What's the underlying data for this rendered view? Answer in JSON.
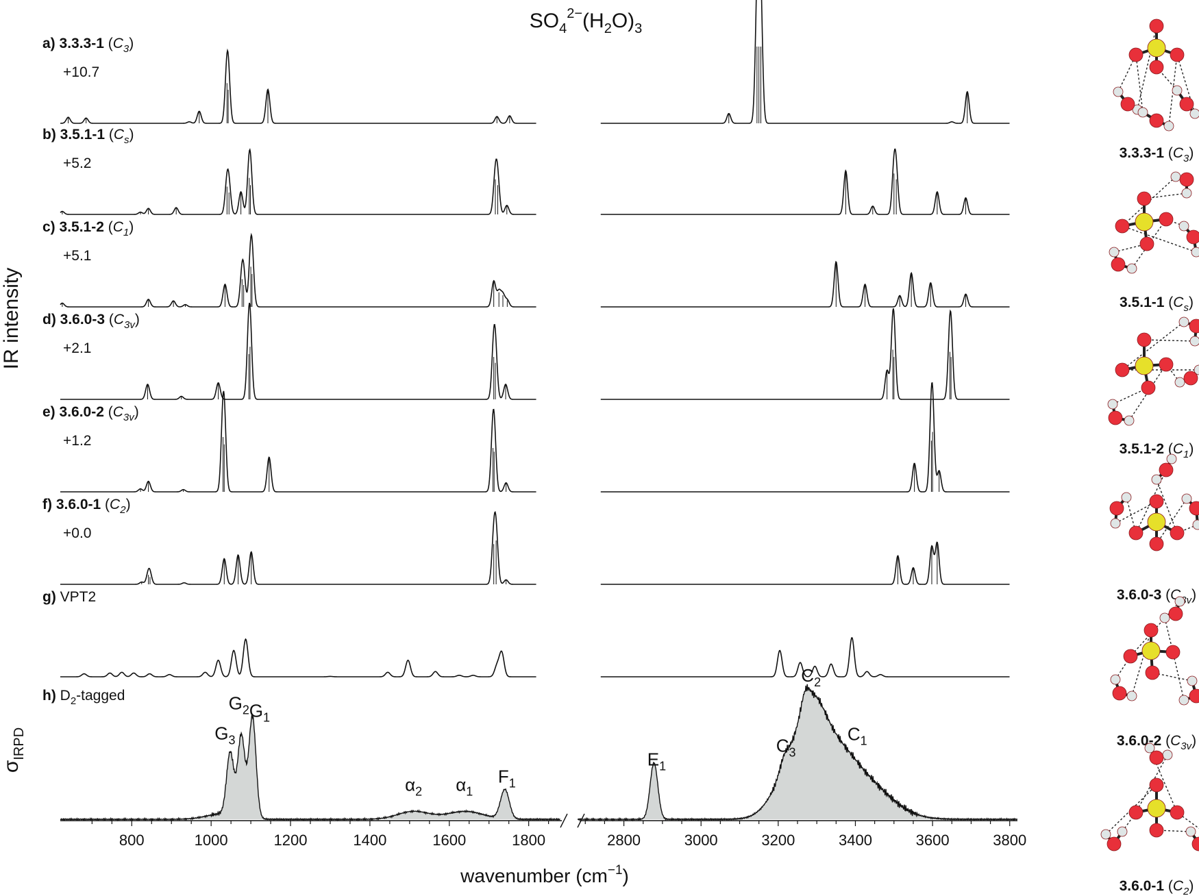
{
  "chart_data": {
    "type": "line",
    "title": "SO42−(H2O)3",
    "title_parts": {
      "base": "SO",
      "sub1": "4",
      "sup": "2−",
      "mid": "(H",
      "sub2": "2",
      "tail": "O)",
      "sub3": "3"
    },
    "xlabel": "wavenumber (cm−1)",
    "xlabel_parts": {
      "base": "wavenumber (cm",
      "sup": "−1",
      "tail": ")"
    },
    "ylabel": "IR intensity",
    "ylabel2": "σIRPD",
    "ylabel2_parts": {
      "base": "σ",
      "sub": "IRPD"
    },
    "axis_break": true,
    "xlim_left": [
      620,
      1880
    ],
    "xlim_right": [
      2680,
      3820
    ],
    "xticks_left": [
      "800",
      "1000",
      "1200",
      "1400",
      "1600",
      "1800"
    ],
    "xticks_right": [
      "2800",
      "3000",
      "3200",
      "3400",
      "3600",
      "3800"
    ],
    "grid": false,
    "series": [
      {
        "letter": "a)",
        "label": "3.3.3-1",
        "sym": "C",
        "symsub": "3",
        "energy": "+10.7",
        "sticks": [
          [
            640,
            0.08
          ],
          [
            685,
            0.07
          ],
          [
            945,
            0.02
          ],
          [
            970,
            0.16
          ],
          [
            1040,
            0.55
          ],
          [
            1043,
            0.46
          ],
          [
            1143,
            0.45
          ],
          [
            1720,
            0.09
          ],
          [
            1752,
            0.1
          ],
          [
            3072,
            0.13
          ],
          [
            3145,
            1.2
          ],
          [
            3150,
            1.2
          ],
          [
            3155,
            1.2
          ],
          [
            3650,
            0.02
          ],
          [
            3690,
            0.42
          ]
        ]
      },
      {
        "letter": "b)",
        "label": "3.5.1-1",
        "sym": "C",
        "symsub": "s",
        "energy": "+5.2",
        "sticks": [
          [
            625,
            0.04
          ],
          [
            822,
            0.03
          ],
          [
            842,
            0.08
          ],
          [
            912,
            0.09
          ],
          [
            1040,
            0.38
          ],
          [
            1045,
            0.3
          ],
          [
            1075,
            0.3
          ],
          [
            1096,
            0.5
          ],
          [
            1099,
            0.4
          ],
          [
            1716,
            0.48
          ],
          [
            1722,
            0.4
          ],
          [
            1745,
            0.12
          ],
          [
            3375,
            0.58
          ],
          [
            3445,
            0.11
          ],
          [
            3500,
            0.56
          ],
          [
            3506,
            0.48
          ],
          [
            3612,
            0.3
          ],
          [
            3686,
            0.22
          ]
        ]
      },
      {
        "letter": "c)",
        "label": "3.5.1-2",
        "sym": "C",
        "symsub": "1",
        "energy": "+5.1",
        "sticks": [
          [
            625,
            0.05
          ],
          [
            842,
            0.1
          ],
          [
            905,
            0.08
          ],
          [
            935,
            0.03
          ],
          [
            1035,
            0.3
          ],
          [
            1078,
            0.38
          ],
          [
            1082,
            0.3
          ],
          [
            1100,
            0.55
          ],
          [
            1103,
            0.45
          ],
          [
            1712,
            0.34
          ],
          [
            1725,
            0.2
          ],
          [
            1735,
            0.16
          ],
          [
            1746,
            0.09
          ],
          [
            3350,
            0.6
          ],
          [
            3425,
            0.3
          ],
          [
            3515,
            0.15
          ],
          [
            3545,
            0.45
          ],
          [
            3595,
            0.32
          ],
          [
            3686,
            0.17
          ]
        ]
      },
      {
        "letter": "d)",
        "label": "3.6.0-3",
        "sym": "C",
        "symsub": "3v",
        "energy": "+2.1",
        "sticks": [
          [
            840,
            0.2
          ],
          [
            925,
            0.04
          ],
          [
            1018,
            0.22
          ],
          [
            1095,
            0.62
          ],
          [
            1098,
            0.72
          ],
          [
            1712,
            0.58
          ],
          [
            1716,
            0.5
          ],
          [
            1742,
            0.2
          ],
          [
            3482,
            0.38
          ],
          [
            3497,
            0.68
          ],
          [
            3500,
            0.58
          ],
          [
            3645,
            0.65
          ],
          [
            3648,
            0.58
          ]
        ]
      },
      {
        "letter": "e)",
        "label": "3.6.0-2",
        "sym": "C",
        "symsub": "3v",
        "energy": "+1.2",
        "sticks": [
          [
            822,
            0.04
          ],
          [
            842,
            0.14
          ],
          [
            930,
            0.03
          ],
          [
            1030,
            0.75
          ],
          [
            1033,
            0.65
          ],
          [
            1146,
            0.46
          ],
          [
            1710,
            0.6
          ],
          [
            1713,
            0.55
          ],
          [
            1743,
            0.12
          ],
          [
            3553,
            0.38
          ],
          [
            3597,
            0.7
          ],
          [
            3600,
            0.82
          ],
          [
            3617,
            0.28
          ]
        ]
      },
      {
        "letter": "f)",
        "label": "3.6.0-1",
        "sym": "C",
        "symsub": "2",
        "energy": "+0.0",
        "sticks": [
          [
            825,
            0.03
          ],
          [
            842,
            0.13
          ],
          [
            846,
            0.1
          ],
          [
            932,
            0.02
          ],
          [
            1033,
            0.34
          ],
          [
            1068,
            0.39
          ],
          [
            1101,
            0.43
          ],
          [
            1712,
            0.55
          ],
          [
            1718,
            0.6
          ],
          [
            1743,
            0.06
          ],
          [
            3510,
            0.38
          ],
          [
            3550,
            0.22
          ],
          [
            3598,
            0.5
          ],
          [
            3612,
            0.55
          ]
        ]
      },
      {
        "letter": "g)",
        "label": "VPT2",
        "energy": "",
        "sticks": [
          [
            680,
            0.04
          ],
          [
            745,
            0.05
          ],
          [
            775,
            0.06
          ],
          [
            805,
            0.05
          ],
          [
            845,
            0.04
          ],
          [
            895,
            0.03
          ],
          [
            985,
            0.06
          ],
          [
            1018,
            0.22
          ],
          [
            1057,
            0.35
          ],
          [
            1087,
            0.5
          ],
          [
            1300,
            0.005
          ],
          [
            1445,
            0.06
          ],
          [
            1496,
            0.22
          ],
          [
            1565,
            0.07
          ],
          [
            1625,
            0.02
          ],
          [
            1660,
            0.02
          ],
          [
            1720,
            0.14
          ],
          [
            1732,
            0.32
          ],
          [
            3204,
            0.35
          ],
          [
            3257,
            0.19
          ],
          [
            3295,
            0.14
          ],
          [
            3337,
            0.17
          ],
          [
            3391,
            0.52
          ],
          [
            3430,
            0.07
          ],
          [
            3465,
            0.03
          ]
        ]
      },
      {
        "letter": "h)",
        "label": "D2-tagged",
        "label_parts": {
          "base": "D",
          "sub": "2",
          "tail": "-tagged"
        },
        "energy": "",
        "experimental": true,
        "bands": [
          [
            1048,
            0.55,
            9
          ],
          [
            1076,
            0.72,
            9
          ],
          [
            1104,
            0.9,
            9
          ],
          [
            1030,
            0.05,
            40
          ],
          [
            1510,
            0.07,
            40
          ],
          [
            1640,
            0.07,
            45
          ],
          [
            1740,
            0.26,
            11
          ],
          [
            2878,
            0.5,
            10
          ],
          [
            3230,
            0.38,
            45
          ],
          [
            3285,
            0.62,
            35
          ],
          [
            3340,
            0.45,
            50
          ],
          [
            3420,
            0.32,
            70
          ],
          [
            3215,
            0.1,
            12
          ],
          [
            3270,
            0.12,
            10
          ]
        ],
        "annotations": [
          {
            "text": "G",
            "sub": "3",
            "x": 1035
          },
          {
            "text": "G",
            "sub": "2",
            "x": 1070
          },
          {
            "text": "G",
            "sub": "1",
            "x": 1122
          },
          {
            "text": "α",
            "sub": "2",
            "x": 1510
          },
          {
            "text": "α",
            "sub": "1",
            "x": 1638
          },
          {
            "text": "F",
            "sub": "1",
            "x": 1745
          },
          {
            "text": "E",
            "sub": "1",
            "x": 2885
          },
          {
            "text": "C",
            "sub": "3",
            "x": 3220
          },
          {
            "text": "C",
            "sub": "2",
            "x": 3285
          },
          {
            "text": "C",
            "sub": "1",
            "x": 3405
          }
        ]
      }
    ]
  },
  "structures": [
    {
      "label": "3.3.3-1",
      "sym": "C",
      "symsub": "3"
    },
    {
      "label": "3.5.1-1",
      "sym": "C",
      "symsub": "s"
    },
    {
      "label": "3.5.1-2",
      "sym": "C",
      "symsub": "1"
    },
    {
      "label": "3.6.0-3",
      "sym": "C",
      "symsub": "3v"
    },
    {
      "label": "3.6.0-2",
      "sym": "C",
      "symsub": "3v"
    },
    {
      "label": "3.6.0-1",
      "sym": "C",
      "symsub": "2"
    }
  ],
  "colors": {
    "sulfur": "#e6e02a",
    "oxygen": "#e8303a",
    "hydrogen": "#dfe6e6",
    "fill": "#d4d7d6",
    "line": "#111111"
  }
}
